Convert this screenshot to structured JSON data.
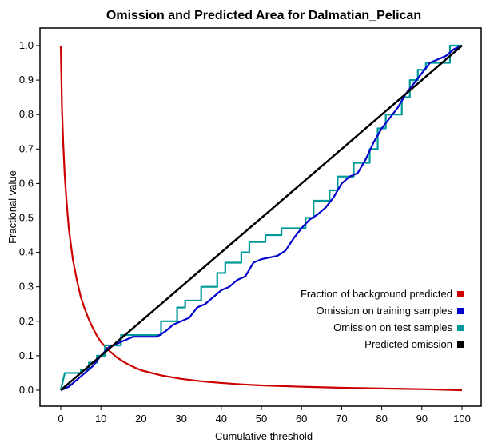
{
  "chart_data": {
    "type": "line",
    "title": "Omission and Predicted Area for Dalmatian_Pelican",
    "xlabel": "Cumulative threshold",
    "ylabel": "Fractional value",
    "xlim": [
      0,
      100
    ],
    "ylim": [
      0,
      1.0
    ],
    "x_ticks": [
      0,
      10,
      20,
      30,
      40,
      50,
      60,
      70,
      80,
      90,
      100
    ],
    "y_ticks": [
      0.0,
      0.1,
      0.2,
      0.3,
      0.4,
      0.5,
      0.6,
      0.7,
      0.8,
      0.9,
      1.0
    ],
    "x_tick_labels": [
      "0",
      "10",
      "20",
      "30",
      "40",
      "50",
      "60",
      "70",
      "80",
      "90",
      "100"
    ],
    "y_tick_labels": [
      "0.0",
      "0.1",
      "0.2",
      "0.3",
      "0.4",
      "0.5",
      "0.6",
      "0.7",
      "0.8",
      "0.9",
      "1.0"
    ],
    "grid": true,
    "legend_position": "bottom-right",
    "series": [
      {
        "name": "Fraction of background predicted",
        "color": "#cc0000",
        "points": [
          [
            0,
            1.0
          ],
          [
            0.3,
            0.82
          ],
          [
            0.6,
            0.72
          ],
          [
            1,
            0.62
          ],
          [
            1.5,
            0.54
          ],
          [
            2,
            0.47
          ],
          [
            3,
            0.38
          ],
          [
            4,
            0.32
          ],
          [
            5,
            0.27
          ],
          [
            6,
            0.235
          ],
          [
            7,
            0.205
          ],
          [
            8,
            0.18
          ],
          [
            9,
            0.158
          ],
          [
            10,
            0.14
          ],
          [
            12,
            0.115
          ],
          [
            14,
            0.095
          ],
          [
            16,
            0.08
          ],
          [
            18,
            0.068
          ],
          [
            20,
            0.058
          ],
          [
            25,
            0.043
          ],
          [
            30,
            0.033
          ],
          [
            35,
            0.026
          ],
          [
            40,
            0.021
          ],
          [
            45,
            0.017
          ],
          [
            50,
            0.014
          ],
          [
            60,
            0.01
          ],
          [
            70,
            0.007
          ],
          [
            80,
            0.005
          ],
          [
            90,
            0.003
          ],
          [
            100,
            0.0
          ]
        ]
      },
      {
        "name": "Omission on training samples",
        "color": "#0000cc",
        "points": [
          [
            0,
            0.0
          ],
          [
            2,
            0.01
          ],
          [
            4,
            0.03
          ],
          [
            6,
            0.05
          ],
          [
            8,
            0.07
          ],
          [
            10,
            0.1
          ],
          [
            12,
            0.125
          ],
          [
            14,
            0.135
          ],
          [
            16,
            0.145
          ],
          [
            18,
            0.155
          ],
          [
            20,
            0.155
          ],
          [
            24,
            0.155
          ],
          [
            26,
            0.17
          ],
          [
            28,
            0.19
          ],
          [
            30,
            0.2
          ],
          [
            32,
            0.21
          ],
          [
            34,
            0.24
          ],
          [
            36,
            0.25
          ],
          [
            38,
            0.27
          ],
          [
            40,
            0.29
          ],
          [
            42,
            0.3
          ],
          [
            44,
            0.32
          ],
          [
            46,
            0.33
          ],
          [
            48,
            0.37
          ],
          [
            50,
            0.38
          ],
          [
            52,
            0.385
          ],
          [
            54,
            0.39
          ],
          [
            56,
            0.405
          ],
          [
            58,
            0.44
          ],
          [
            60,
            0.47
          ],
          [
            62,
            0.495
          ],
          [
            64,
            0.51
          ],
          [
            66,
            0.53
          ],
          [
            68,
            0.56
          ],
          [
            70,
            0.6
          ],
          [
            72,
            0.62
          ],
          [
            74,
            0.63
          ],
          [
            76,
            0.67
          ],
          [
            78,
            0.72
          ],
          [
            80,
            0.76
          ],
          [
            82,
            0.79
          ],
          [
            84,
            0.82
          ],
          [
            86,
            0.86
          ],
          [
            88,
            0.89
          ],
          [
            90,
            0.92
          ],
          [
            92,
            0.95
          ],
          [
            94,
            0.96
          ],
          [
            96,
            0.97
          ],
          [
            98,
            0.99
          ],
          [
            100,
            1.0
          ]
        ]
      },
      {
        "name": "Omission on test samples",
        "color": "#009999",
        "step": true,
        "points": [
          [
            0,
            0.0
          ],
          [
            1,
            0.05
          ],
          [
            5,
            0.05
          ],
          [
            5,
            0.06
          ],
          [
            7,
            0.06
          ],
          [
            7,
            0.08
          ],
          [
            9,
            0.08
          ],
          [
            9,
            0.1
          ],
          [
            11,
            0.1
          ],
          [
            11,
            0.13
          ],
          [
            15,
            0.13
          ],
          [
            15,
            0.16
          ],
          [
            25,
            0.16
          ],
          [
            25,
            0.2
          ],
          [
            29,
            0.2
          ],
          [
            29,
            0.24
          ],
          [
            31,
            0.24
          ],
          [
            31,
            0.26
          ],
          [
            35,
            0.26
          ],
          [
            35,
            0.3
          ],
          [
            39,
            0.3
          ],
          [
            39,
            0.34
          ],
          [
            41,
            0.34
          ],
          [
            41,
            0.37
          ],
          [
            45,
            0.37
          ],
          [
            45,
            0.4
          ],
          [
            47,
            0.4
          ],
          [
            47,
            0.43
          ],
          [
            51,
            0.43
          ],
          [
            51,
            0.45
          ],
          [
            55,
            0.45
          ],
          [
            55,
            0.47
          ],
          [
            61,
            0.47
          ],
          [
            61,
            0.5
          ],
          [
            63,
            0.5
          ],
          [
            63,
            0.55
          ],
          [
            67,
            0.55
          ],
          [
            67,
            0.58
          ],
          [
            69,
            0.58
          ],
          [
            69,
            0.62
          ],
          [
            73,
            0.62
          ],
          [
            73,
            0.66
          ],
          [
            77,
            0.66
          ],
          [
            77,
            0.7
          ],
          [
            79,
            0.7
          ],
          [
            79,
            0.76
          ],
          [
            81,
            0.76
          ],
          [
            81,
            0.8
          ],
          [
            85,
            0.8
          ],
          [
            85,
            0.85
          ],
          [
            87,
            0.85
          ],
          [
            87,
            0.9
          ],
          [
            89,
            0.9
          ],
          [
            89,
            0.93
          ],
          [
            91,
            0.93
          ],
          [
            91,
            0.95
          ],
          [
            97,
            0.95
          ],
          [
            97,
            1.0
          ],
          [
            100,
            1.0
          ]
        ]
      },
      {
        "name": "Predicted omission",
        "color": "#000000",
        "points": [
          [
            0,
            0.0
          ],
          [
            100,
            1.0
          ]
        ]
      }
    ]
  }
}
